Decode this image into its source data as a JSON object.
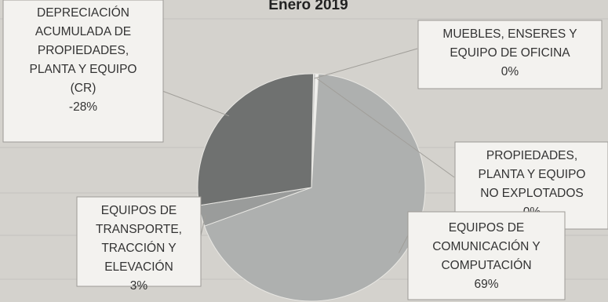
{
  "chart_data": {
    "type": "pie",
    "title": "Enero 2019",
    "slices": [
      {
        "label_lines": [
          "MUEBLES, ENSERES Y",
          "EQUIPO DE OFICINA"
        ],
        "value_label": "0%",
        "value": 0.3,
        "color": "#c9cac9"
      },
      {
        "label_lines": [
          "PROPIEDADES,",
          "PLANTA Y EQUIPO",
          "NO EXPLOTADOS"
        ],
        "value_label": "0%",
        "value": 0.4,
        "color": "#f1f1ef"
      },
      {
        "label_lines": [
          "EQUIPOS DE",
          "COMUNICACIÓN Y",
          "COMPUTACIÓN"
        ],
        "value_label": "69%",
        "value": 69,
        "color": "#aeb0af"
      },
      {
        "label_lines": [
          "EQUIPOS DE",
          "TRANSPORTE,",
          "TRACCIÓN Y",
          "ELEVACIÓN"
        ],
        "value_label": "3%",
        "value": 3,
        "color": "#9a9c9b"
      },
      {
        "label_lines": [
          "DEPRECIACIÓN",
          "ACUMULADA DE",
          "PROPIEDADES,",
          "PLANTA Y EQUIPO",
          "(CR)"
        ],
        "value_label": "-28%",
        "value": 28,
        "color": "#6f7170"
      }
    ]
  }
}
